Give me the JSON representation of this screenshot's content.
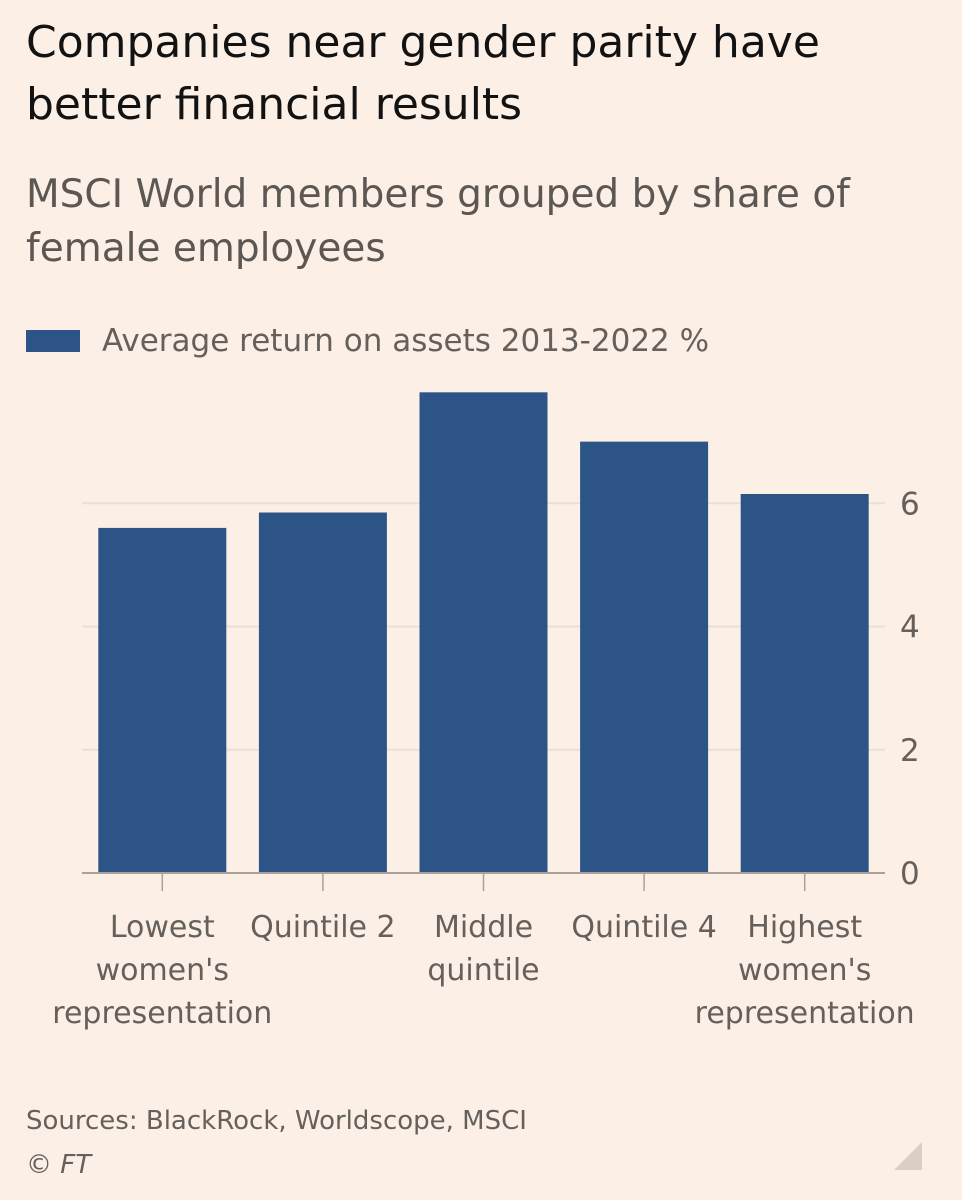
{
  "title": "Companies near gender parity have better financial results",
  "subtitle": "MSCI World members grouped by share of female employees",
  "legend": {
    "label": "Average return on assets 2013-2022 %"
  },
  "source": "Sources: BlackRock, Worldscope, MSCI",
  "copyright": "© FT",
  "colors": {
    "bar": "#2d5486",
    "background": "#fcf0e6",
    "grid": "#eadfd5",
    "axis": "#a9a19a"
  },
  "chart_data": {
    "type": "bar",
    "categories": [
      [
        "Lowest",
        "women's",
        "representation"
      ],
      [
        "Quintile 2"
      ],
      [
        "Middle",
        "quintile"
      ],
      [
        "Quintile 4"
      ],
      [
        "Highest",
        "women's",
        "representation"
      ]
    ],
    "series": [
      {
        "name": "Average return on assets 2013-2022 %",
        "values": [
          5.6,
          5.85,
          7.8,
          7.0,
          6.15
        ]
      }
    ],
    "yticks": [
      0,
      2,
      4,
      6
    ],
    "ylim": [
      0,
      8
    ],
    "grid": true,
    "y_axis_side": "right",
    "legend_position": "top-left"
  }
}
